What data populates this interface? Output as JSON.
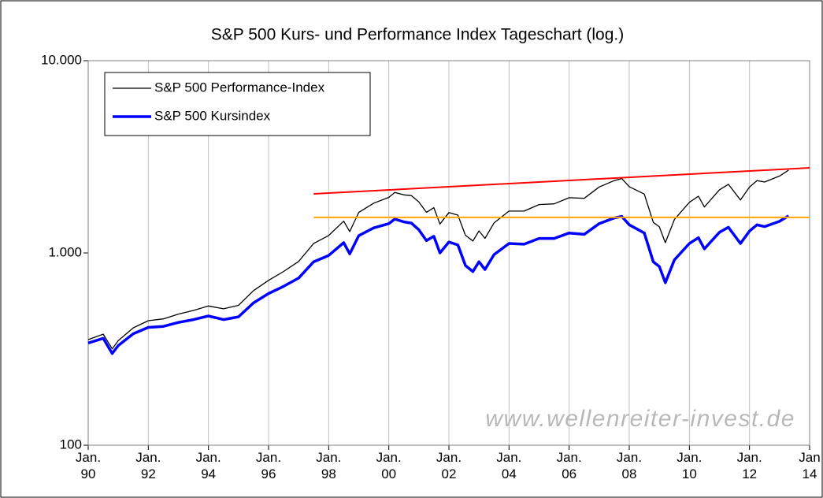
{
  "chart_data": {
    "type": "line",
    "title": "S&P 500 Kurs- und Performance Index Tageschart (log.)",
    "log_scale": true,
    "grid": "x",
    "legend": "upper left",
    "x": [
      1990.0,
      1990.5,
      1990.8,
      1991.0,
      1991.5,
      1992.0,
      1992.5,
      1993.0,
      1993.5,
      1994.0,
      1994.5,
      1995.0,
      1995.5,
      1996.0,
      1996.5,
      1997.0,
      1997.5,
      1998.0,
      1998.5,
      1998.7,
      1999.0,
      1999.5,
      2000.0,
      2000.2,
      2000.5,
      2000.75,
      2001.0,
      2001.25,
      2001.5,
      2001.7,
      2002.0,
      2002.3,
      2002.55,
      2002.8,
      2003.0,
      2003.2,
      2003.5,
      2004.0,
      2004.5,
      2005.0,
      2005.5,
      2006.0,
      2006.5,
      2007.0,
      2007.5,
      2007.75,
      2008.0,
      2008.5,
      2008.8,
      2009.0,
      2009.2,
      2009.5,
      2010.0,
      2010.3,
      2010.5,
      2011.0,
      2011.3,
      2011.7,
      2012.0,
      2012.25,
      2012.5,
      2013.0,
      2013.3
    ],
    "series": [
      {
        "name": "S&P 500 Performance-Index",
        "color": "#000000",
        "width": 1.3,
        "values": [
          354,
          378,
          317,
          350,
          408,
          444,
          454,
          481,
          502,
          530,
          512,
          534,
          637,
          720,
          801,
          903,
          1121,
          1232,
          1463,
          1292,
          1624,
          1816,
          1945,
          2063,
          2005,
          1988,
          1843,
          1627,
          1719,
          1414,
          1621,
          1573,
          1235,
          1154,
          1303,
          1191,
          1432,
          1651,
          1651,
          1785,
          1800,
          1938,
          1924,
          2204,
          2379,
          2437,
          2212,
          2024,
          1442,
          1367,
          1130,
          1492,
          1832,
          1973,
          1733,
          2130,
          2274,
          1886,
          2200,
          2379,
          2337,
          2511,
          2696
        ]
      },
      {
        "name": "S&P 500 Kursindex",
        "color": "#0000ff",
        "width": 3.5,
        "values": [
          340,
          360,
          300,
          330,
          380,
          410,
          415,
          435,
          450,
          470,
          450,
          465,
          550,
          615,
          670,
          740,
          900,
          970,
          1130,
          990,
          1230,
          1350,
          1420,
          1500,
          1450,
          1430,
          1320,
          1160,
          1220,
          1000,
          1140,
          1100,
          860,
          800,
          900,
          820,
          980,
          1120,
          1110,
          1190,
          1190,
          1270,
          1250,
          1420,
          1520,
          1550,
          1400,
          1270,
          900,
          850,
          700,
          920,
          1120,
          1200,
          1050,
          1280,
          1360,
          1120,
          1300,
          1400,
          1370,
          1460,
          1560
        ]
      }
    ],
    "lines": [
      {
        "x": [
          1997.5,
          2014
        ],
        "values": [
          2030,
          2770
        ],
        "color": "#ff0000"
      },
      {
        "x": [
          1997.5,
          2014
        ],
        "values": [
          1530,
          1530
        ],
        "color": "#ffa500"
      }
    ],
    "annotations": [
      {
        "text": "www.wellenreiter-invest.de"
      }
    ],
    "xlim": [
      1990,
      2014
    ],
    "xticks": [
      {
        "value": 1990,
        "label": "Jan. 90"
      },
      {
        "value": 1992,
        "label": "Jan. 92"
      },
      {
        "value": 1994,
        "label": "Jan. 94"
      },
      {
        "value": 1996,
        "label": "Jan. 96"
      },
      {
        "value": 1998,
        "label": "Jan. 98"
      },
      {
        "value": 2000,
        "label": "Jan. 00"
      },
      {
        "value": 2002,
        "label": "Jan. 02"
      },
      {
        "value": 2004,
        "label": "Jan. 04"
      },
      {
        "value": 2006,
        "label": "Jan. 06"
      },
      {
        "value": 2008,
        "label": "Jan. 08"
      },
      {
        "value": 2010,
        "label": "Jan. 10"
      },
      {
        "value": 2012,
        "label": "Jan. 12"
      },
      {
        "value": 2014,
        "label": "Jan 14"
      }
    ],
    "ylim": [
      100,
      10000
    ],
    "yticks": [
      100,
      {
        "value": 1000,
        "label": "1.000"
      },
      {
        "value": 10000,
        "label": "10.000"
      }
    ]
  }
}
